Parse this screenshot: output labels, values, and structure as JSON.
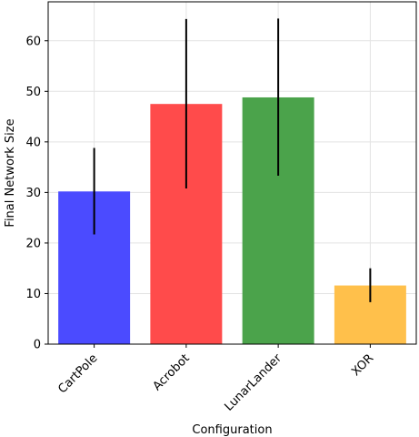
{
  "chart_data": {
    "type": "bar",
    "categories": [
      "CartPole",
      "Acrobot",
      "LunarLander",
      "XOR"
    ],
    "values": [
      30.2,
      47.5,
      48.8,
      11.6
    ],
    "errors": [
      [
        21.7,
        38.8
      ],
      [
        30.8,
        64.3
      ],
      [
        33.3,
        64.4
      ],
      [
        8.3,
        15.0
      ]
    ],
    "colors": [
      "#4b4bff",
      "#ff4b4b",
      "#4ba34b",
      "#ffc04b"
    ],
    "xlabel": "Configuration",
    "ylabel": "Final Network Size",
    "ylim": [
      0,
      67.7
    ],
    "yticks": [
      0,
      10,
      20,
      30,
      40,
      50,
      60
    ],
    "grid": true
  }
}
